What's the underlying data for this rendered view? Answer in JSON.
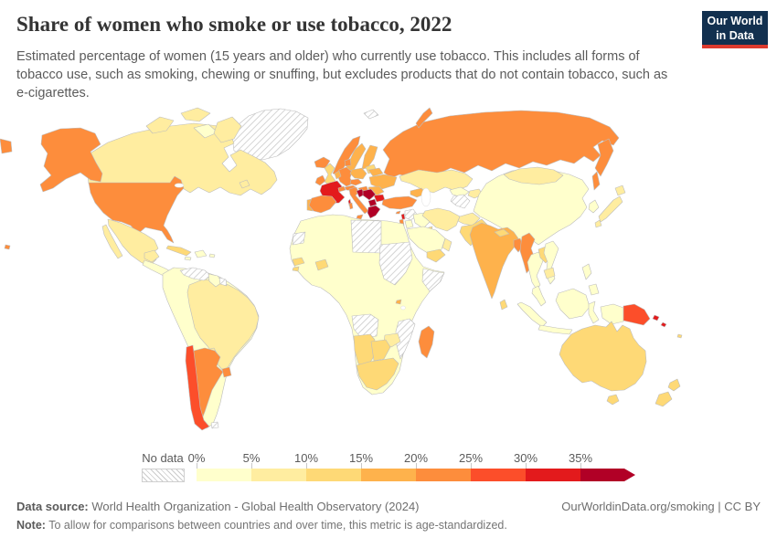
{
  "header": {
    "title": "Share of women who smoke or use tobacco, 2022",
    "subtitle": "Estimated percentage of women (15 years and older) who currently use tobacco. This includes all forms of tobacco use, such as smoking, chewing or snuffing, but excludes products that do not contain tobacco, such as e-cigarettes.",
    "logo_line1": "Our World",
    "logo_line2": "in Data"
  },
  "legend": {
    "no_data_label": "No data",
    "ticks": [
      "0%",
      "5%",
      "10%",
      "15%",
      "20%",
      "25%",
      "30%",
      "35%"
    ]
  },
  "footer": {
    "source_label": "Data source:",
    "source_text": " World Health Organization - Global Health Observatory (2024)",
    "note_label": "Note:",
    "note_text": " To allow for comparisons between countries and over time, this metric is age-standardized.",
    "link": "OurWorldinData.org/smoking | CC BY"
  },
  "chart_data": {
    "type": "choropleth_map",
    "title": "Share of women who smoke or use tobacco, 2022",
    "unit": "% of women aged 15+ currently using tobacco",
    "year": "2022",
    "legend_position": "bottom",
    "bins": [
      {
        "label": "0-5%",
        "color": "#ffffcc"
      },
      {
        "label": "5-10%",
        "color": "#ffeda0"
      },
      {
        "label": "10-15%",
        "color": "#fed976"
      },
      {
        "label": "15-20%",
        "color": "#feb24c"
      },
      {
        "label": "20-25%",
        "color": "#fd8d3c"
      },
      {
        "label": "25-30%",
        "color": "#fc4e2a"
      },
      {
        "label": "30-35%",
        "color": "#e31a1c"
      },
      {
        "label": "35%+",
        "color": "#b10026"
      }
    ],
    "no_data": {
      "label": "No data",
      "style": "gray-diagonal-hatch"
    },
    "regions": {
      "greenland": "nd",
      "venezuela": "nd",
      "suriname": "nd",
      "falkland_islands": "nd",
      "western_sahara": "nd",
      "libya": "nd",
      "sudan": "nd",
      "somalia": "nd",
      "angola": "nd",
      "mozambique": "nd",
      "syria": "nd",
      "turkmenistan": "nd",
      "svalbard": "nd",
      "canada": 1,
      "arctic_island_1": 1,
      "arctic_island_2": 1,
      "arctic_island_3": 0,
      "baffin_island": 1,
      "newfoundland": 1,
      "alaska": 4,
      "usa": 4,
      "hawaii": 4,
      "mexico": 1,
      "baja_california": 1,
      "yucatan": 1,
      "central_america": 0,
      "panama": 0,
      "cuba": 2,
      "hispaniola": 0,
      "jamaica": 0,
      "puerto_rico": 0,
      "south_america_andean": 0,
      "guyana": 0,
      "brazil": 1,
      "paraguay": 1,
      "chile": 5,
      "argentina": 4,
      "uruguay": 4,
      "iceland": 4,
      "ireland": 4,
      "united_kingdom": 2,
      "norway": 4,
      "sweden": 3,
      "finland": 3,
      "denmark": 4,
      "baltics": 2,
      "france": 6,
      "corsica": 6,
      "portugal": 3,
      "spain": 4,
      "germany": 4,
      "benelux": 3,
      "switzerland": 4,
      "austria": 4,
      "czech_slovakia": 4,
      "poland": 3,
      "hungary": 4,
      "italy": 4,
      "sicily": 4,
      "sardinia": 4,
      "croatia": 7,
      "serbia_bosnia": 7,
      "albania_macedonia": 7,
      "greece": 7,
      "crete": 7,
      "bulgaria": 6,
      "romania": 3,
      "ukraine": 3,
      "belarus": 3,
      "russia": 4,
      "kamchatka": 4,
      "sakhalin": 4,
      "russia_west_wrap": 4,
      "novaya_zemlya": 4,
      "kazakhstan": 1,
      "uzbekistan": 0,
      "kyrgyzstan_tajikistan": 1,
      "caucasus": 3,
      "turkey": 4,
      "cyprus": 4,
      "lebanon": 6,
      "israel": 4,
      "jordan": 0,
      "iraq": 0,
      "kuwait": 2,
      "saudi_arabia": 0,
      "yemen": 2,
      "oman": 1,
      "iran": 1,
      "afghanistan": 1,
      "pakistan": 2,
      "india": 3,
      "nepal": 2,
      "bangladesh": 4,
      "sri_lanka": 2,
      "myanmar": 4,
      "china": 0,
      "mongolia": 1,
      "korea": 0,
      "japan_hokkaido": 1,
      "japan_honshu": 1,
      "japan_kyushu": 1,
      "thailand": 0,
      "laos": 2,
      "vietnam": 0,
      "cambodia": 1,
      "malay_peninsula": 0,
      "sumatra": 0,
      "java": 0,
      "borneo": 0,
      "sulawesi": 0,
      "philippines_luzon": 0,
      "philippines_mindanao": 0,
      "timor": 0,
      "west_papua": 0,
      "papua_new_guinea": 5,
      "solomon_1": 6,
      "solomon_2": 6,
      "fiji": 2,
      "australia": 2,
      "tasmania": 2,
      "new_zealand_north": 2,
      "new_zealand_south": 2,
      "africa_mainland": 0,
      "senegal": 2,
      "guinea_bissau": 2,
      "burkina_faso": 2,
      "rwanda": 3,
      "zimbabwe": 1,
      "namibia": 2,
      "botswana": 2,
      "south_africa": 2,
      "madagascar": 4
    }
  }
}
